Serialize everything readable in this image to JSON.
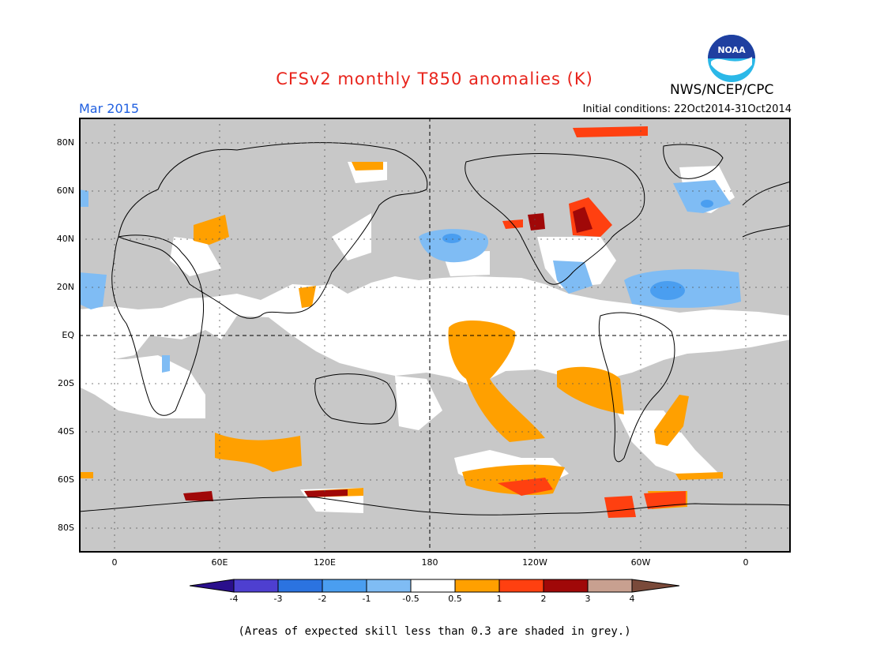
{
  "header": {
    "title": "CFSv2 monthly T850 anomalies (K)",
    "org": "NWS/NCEP/CPC",
    "logo_text": "NOAA",
    "month": "Mar 2015",
    "initial_conditions": "Initial conditions: 22Oct2014-31Oct2014"
  },
  "axes": {
    "lat_labels": [
      "80N",
      "60N",
      "40N",
      "20N",
      "EQ",
      "20S",
      "40S",
      "60S",
      "80S"
    ],
    "lon_labels": [
      "0",
      "60E",
      "120E",
      "180",
      "120W",
      "60W",
      "0"
    ]
  },
  "colorbar": {
    "labels": [
      "-4",
      "-3",
      "-2",
      "-1",
      "-0.5",
      "0.5",
      "1",
      "2",
      "3",
      "4"
    ],
    "colors": [
      "#2a0f8c",
      "#4e3fd0",
      "#2b73e0",
      "#4a9ef0",
      "#7fbcf4",
      "#ffffff",
      "#ffa000",
      "#ff4010",
      "#a00808",
      "#c8a090",
      "#7a4a3a"
    ]
  },
  "note": "(Areas of expected skill less than 0.3 are shaded in grey.)",
  "colors": {
    "no_skill_grey": "#c8c8c8",
    "title_red": "#e8241c",
    "month_blue": "#1f5fe0"
  }
}
